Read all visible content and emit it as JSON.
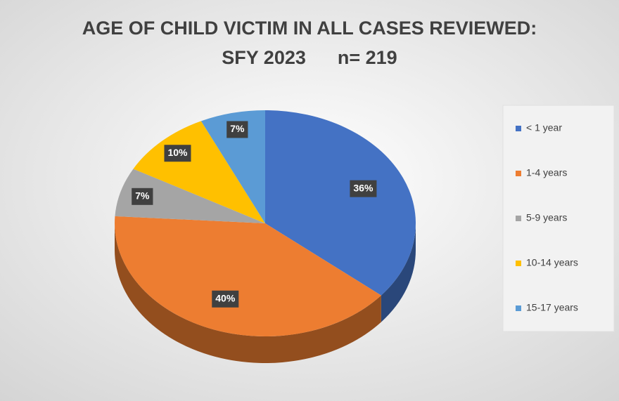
{
  "chart_data": {
    "type": "pie3d",
    "title": "AGE OF CHILD VICTIM IN ALL CASES REVIEWED:",
    "subtitle": "SFY 2023      n= 219",
    "categories": [
      "< 1 year",
      "1-4 years",
      "5-9 years",
      "10-14 years",
      "15-17 years"
    ],
    "values": [
      36,
      40,
      7,
      10,
      7
    ],
    "value_labels": [
      "36%",
      "40%",
      "7%",
      "10%",
      "7%"
    ],
    "colors": [
      "#4472c4",
      "#ed7d31",
      "#a5a5a5",
      "#ffc000",
      "#5b9bd5"
    ],
    "legend": "right"
  }
}
